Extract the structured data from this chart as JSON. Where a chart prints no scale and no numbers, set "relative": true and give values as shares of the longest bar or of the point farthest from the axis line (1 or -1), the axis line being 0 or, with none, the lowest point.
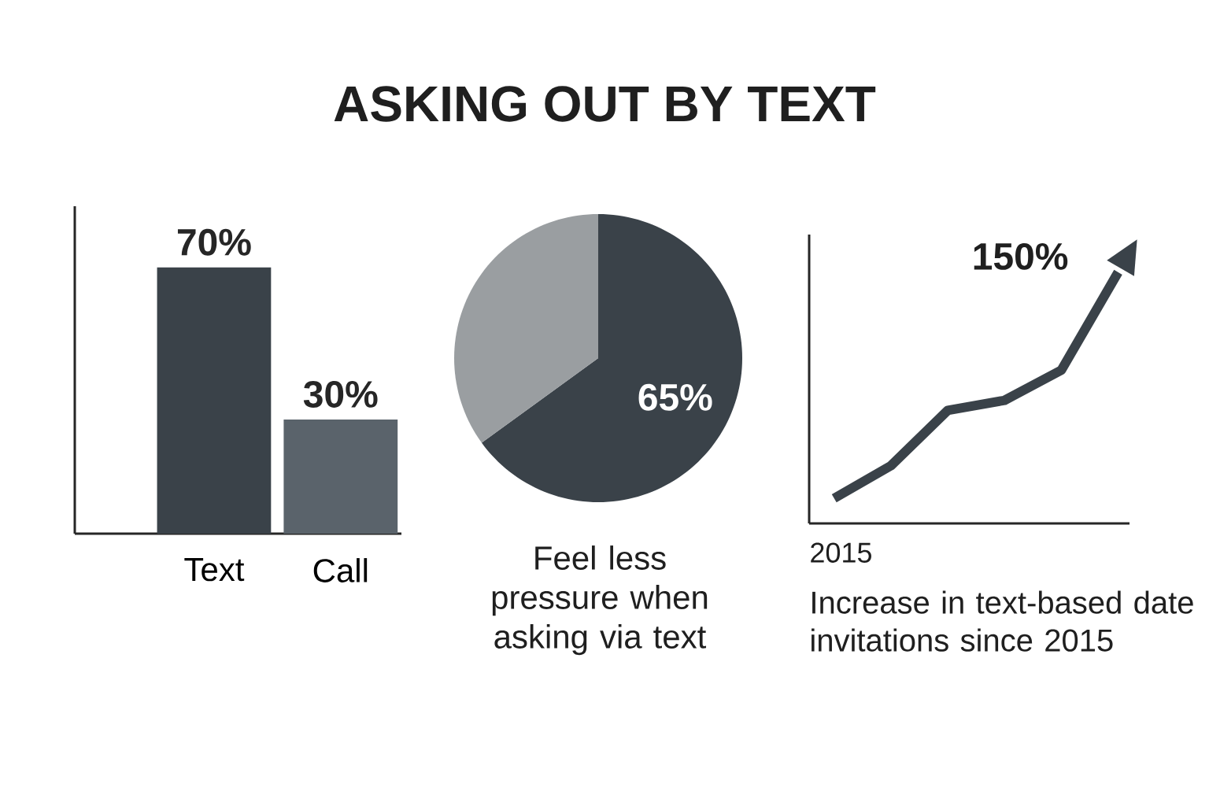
{
  "chart_data": [
    {
      "type": "bar",
      "title": "ASKING OUT BY TEXT",
      "categories": [
        "Text",
        "Call"
      ],
      "values": [
        70,
        30
      ],
      "colors": [
        "#3a4249",
        "#5a636b"
      ],
      "value_labels": [
        "70%",
        "30%"
      ]
    },
    {
      "type": "pie",
      "categories": [
        null,
        null
      ],
      "values": [
        65,
        35
      ],
      "colors": [
        "#3a4249",
        "#9a9ea1"
      ],
      "value_labels": [
        "65%",
        null
      ],
      "annotations": [
        "Feel less pressure when asking via text"
      ]
    },
    {
      "type": "line",
      "relative": true,
      "categories": [
        null,
        null,
        null,
        null,
        null,
        null
      ],
      "values": [
        0.1,
        0.23,
        0.45,
        0.49,
        0.61,
        1
      ],
      "color": "#3a4249",
      "xlabel": "Increase in text-based date invitations since 2015",
      "annotations": [
        "150%",
        "2015"
      ]
    }
  ]
}
